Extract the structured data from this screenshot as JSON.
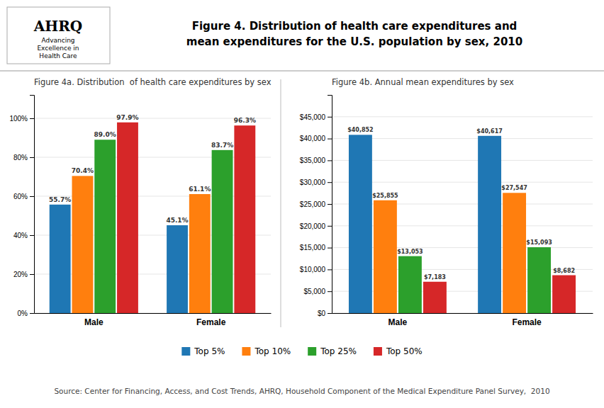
{
  "title": "Figure 4. Distribution of health care expenditures and\nmean expenditures for the U.S. population by sex, 2010",
  "annotations": [
    "AHRQ",
    "Advancing\nExcellence in\nHealth Care",
    "Source: Center for Financing, Access, and Cost Trends, AHRQ, Household Component of the Medical Expenditure Panel Survey,  2010"
  ],
  "chart_data": [
    {
      "type": "bar",
      "title": "Figure 4a. Distribution  of health care expenditures by sex",
      "categories": [
        "Male",
        "Female"
      ],
      "series": [
        {
          "name": "Top 5%",
          "values": [
            55.7,
            45.1
          ],
          "value_labels": [
            "55.7%",
            "45.1%"
          ]
        },
        {
          "name": "Top 10%",
          "values": [
            70.4,
            61.1
          ],
          "value_labels": [
            "70.4%",
            "61.1%"
          ]
        },
        {
          "name": "Top 25%",
          "values": [
            89.0,
            83.7
          ],
          "value_labels": [
            "89.0%",
            "83.7%"
          ]
        },
        {
          "name": "Top 50%",
          "values": [
            97.9,
            96.3
          ],
          "value_labels": [
            "97.9%",
            "96.3%"
          ]
        }
      ],
      "ylim": [
        0,
        112
      ],
      "yticks": [
        {
          "value": 0,
          "label": "0%"
        },
        {
          "value": 20,
          "label": "20%"
        },
        {
          "value": 40,
          "label": "40%"
        },
        {
          "value": 60,
          "label": "60%"
        },
        {
          "value": 80,
          "label": "80%"
        },
        {
          "value": 100,
          "label": "100%"
        }
      ],
      "grid": true,
      "data_labels": true,
      "legend": "bottom"
    },
    {
      "type": "bar",
      "title": "Figure 4b. Annual mean expenditures by sex",
      "categories": [
        "Male",
        "Female"
      ],
      "series": [
        {
          "name": "Top 5%",
          "values": [
            40852,
            40617
          ],
          "value_labels": [
            "$40,852",
            "$40,617"
          ]
        },
        {
          "name": "Top 10%",
          "values": [
            25855,
            27547
          ],
          "value_labels": [
            "$25,855",
            "$27,547"
          ]
        },
        {
          "name": "Top 25%",
          "values": [
            13053,
            15093
          ],
          "value_labels": [
            "$13,053",
            "$15,093"
          ]
        },
        {
          "name": "Top 50%",
          "values": [
            7183,
            8682
          ],
          "value_labels": [
            "$7,183",
            "$8,682"
          ]
        }
      ],
      "ylim": [
        0,
        50000
      ],
      "yticks": [
        {
          "value": 0,
          "label": "$0"
        },
        {
          "value": 5000,
          "label": "$5,000"
        },
        {
          "value": 10000,
          "label": "$10,000"
        },
        {
          "value": 15000,
          "label": "$15,000"
        },
        {
          "value": 20000,
          "label": "$20,000"
        },
        {
          "value": 25000,
          "label": "$25,000"
        },
        {
          "value": 30000,
          "label": "$30,000"
        },
        {
          "value": 35000,
          "label": "$35,000"
        },
        {
          "value": 40000,
          "label": "$40,000"
        },
        {
          "value": 45000,
          "label": "$45,000"
        }
      ],
      "grid": true,
      "data_labels": true
    }
  ]
}
